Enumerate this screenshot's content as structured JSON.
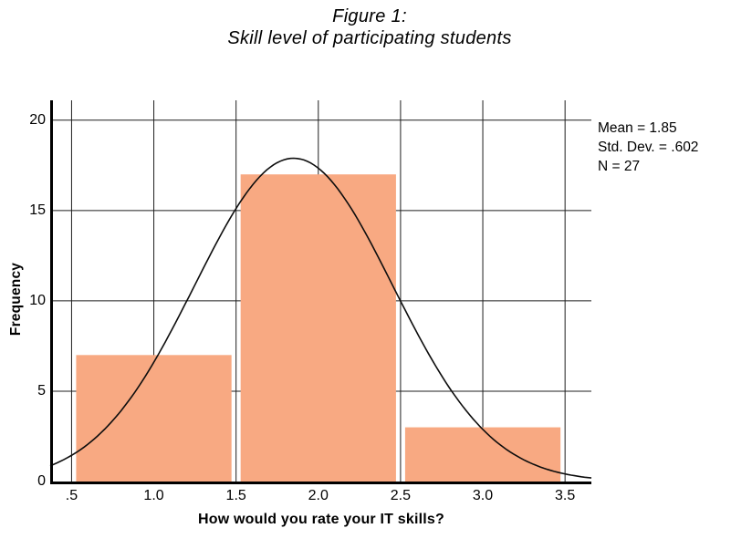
{
  "chart_data": {
    "type": "bar",
    "subtype": "histogram-with-normal-curve",
    "title_lines": [
      "Figure 1:",
      "Skill level of participating students"
    ],
    "xlabel": "How would you rate your IT skills?",
    "ylabel": "Frequency",
    "bin_centers": [
      1,
      2,
      3
    ],
    "bin_width": 1,
    "counts": [
      7,
      17,
      3
    ],
    "normal_curve": {
      "mean": 1.85,
      "std_dev": 0.602,
      "n": 27,
      "peak_frequency": 17.89
    },
    "x_ticks": [
      0.5,
      1.0,
      1.5,
      2.0,
      2.5,
      3.0,
      3.5
    ],
    "x_tick_labels": [
      ".5",
      "1.0",
      "1.5",
      "2.0",
      "2.5",
      "3.0",
      "3.5"
    ],
    "y_ticks": [
      0,
      5,
      10,
      15,
      20
    ],
    "y_tick_labels": [
      "0",
      "5",
      "10",
      "15",
      "20"
    ],
    "xlim": [
      0.37,
      3.66
    ],
    "ylim": [
      0,
      21.1
    ],
    "grid": true,
    "legend": "none",
    "stats": {
      "lines": [
        "Mean = 1.85",
        "Std. Dev. = .602",
        "N = 27"
      ]
    },
    "colors": {
      "bar_fill": "#F8A982",
      "curve": "#0d0d0d",
      "grid": "#1f1f1f",
      "axis": "#000000",
      "text": "#000000",
      "background": "#ffffff"
    }
  }
}
